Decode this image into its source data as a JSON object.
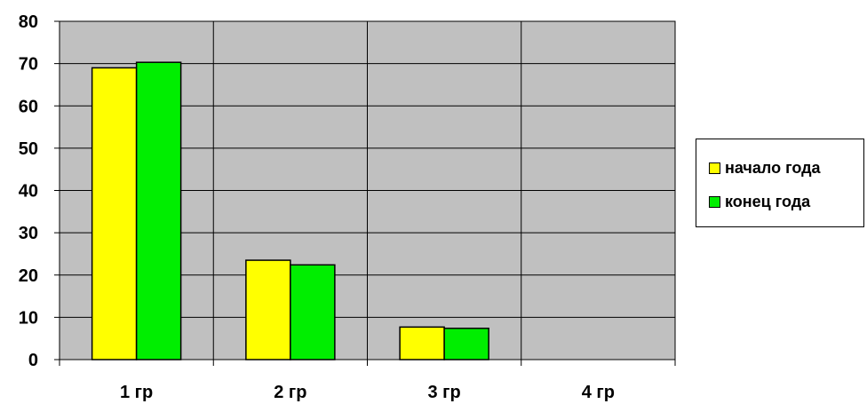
{
  "chart_data": {
    "type": "bar",
    "title": "",
    "xlabel": "",
    "ylabel": "",
    "categories": [
      "1 гр",
      "2 гр",
      "3 гр",
      "4 гр"
    ],
    "ylim": [
      0,
      80
    ],
    "yticks": [
      0,
      10,
      20,
      30,
      40,
      50,
      60,
      70,
      80
    ],
    "grid": true,
    "legend_position": "right",
    "plot_background": "#c0c0c0",
    "series": [
      {
        "name": "начало года",
        "color": "#ffff00",
        "values": [
          69,
          23.5,
          7.7,
          0
        ]
      },
      {
        "name": "конец года",
        "color": "#00ee00",
        "values": [
          70.3,
          22.4,
          7.4,
          0
        ]
      }
    ]
  }
}
